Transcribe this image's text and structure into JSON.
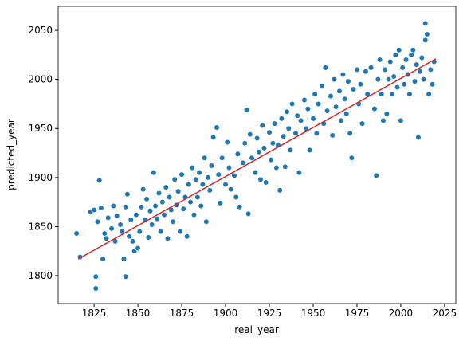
{
  "chart_data": {
    "type": "scatter",
    "xlabel": "real_year",
    "ylabel": "predicted_year",
    "xlim": [
      1804.5,
      2031.4
    ],
    "ylim": [
      1771.6,
      2074.4
    ],
    "xticks": [
      1825,
      1850,
      1875,
      1900,
      1925,
      1950,
      1975,
      2000,
      2025
    ],
    "yticks": [
      1800,
      1850,
      1900,
      1950,
      2000,
      2050
    ],
    "series": [
      {
        "type": "scatter",
        "color": "#1f77b4",
        "x": [
          1815,
          1817,
          1823,
          1825,
          1826,
          1826,
          1827,
          1828,
          1829,
          1830,
          1831,
          1832,
          1833,
          1835,
          1836,
          1837,
          1838,
          1840,
          1841,
          1842,
          1843,
          1843,
          1844,
          1845,
          1846,
          1847,
          1848,
          1849,
          1850,
          1851,
          1852,
          1853,
          1854,
          1855,
          1856,
          1857,
          1858,
          1859,
          1860,
          1861,
          1862,
          1863,
          1864,
          1865,
          1866,
          1867,
          1868,
          1869,
          1870,
          1871,
          1872,
          1873,
          1874,
          1875,
          1876,
          1877,
          1878,
          1879,
          1880,
          1881,
          1882,
          1883,
          1884,
          1885,
          1886,
          1887,
          1888,
          1889,
          1890,
          1891,
          1892,
          1893,
          1895,
          1896,
          1897,
          1898,
          1900,
          1901,
          1902,
          1903,
          1905,
          1906,
          1907,
          1908,
          1910,
          1911,
          1912,
          1913,
          1914,
          1915,
          1917,
          1918,
          1919,
          1920,
          1921,
          1922,
          1923,
          1925,
          1926,
          1927,
          1928,
          1929,
          1930,
          1931,
          1932,
          1933,
          1934,
          1935,
          1936,
          1937,
          1938,
          1940,
          1941,
          1942,
          1943,
          1945,
          1946,
          1947,
          1948,
          1950,
          1951,
          1952,
          1953,
          1955,
          1956,
          1957,
          1958,
          1960,
          1961,
          1962,
          1963,
          1965,
          1966,
          1967,
          1968,
          1969,
          1970,
          1971,
          1972,
          1973,
          1975,
          1976,
          1977,
          1978,
          1980,
          1981,
          1983,
          1985,
          1986,
          1987,
          1988,
          1989,
          1990,
          1991,
          1992,
          1993,
          1994,
          1995,
          1996,
          1997,
          1998,
          1999,
          2000,
          2001,
          2002,
          2003,
          2004,
          2005,
          2006,
          2007,
          2008,
          2009,
          2010,
          2011,
          2012,
          2013,
          2014,
          2014,
          2015,
          2016,
          2017,
          2018,
          2019
        ],
        "y": [
          1843,
          1819,
          1865,
          1867,
          1799,
          1787,
          1855,
          1897,
          1869,
          1817,
          1843,
          1838,
          1859,
          1848,
          1871,
          1835,
          1861,
          1852,
          1845,
          1817,
          1799,
          1870,
          1883,
          1840,
          1857,
          1835,
          1825,
          1862,
          1828,
          1845,
          1870,
          1888,
          1857,
          1878,
          1839,
          1866,
          1852,
          1905,
          1871,
          1858,
          1884,
          1845,
          1875,
          1862,
          1890,
          1838,
          1880,
          1867,
          1855,
          1898,
          1872,
          1886,
          1845,
          1903,
          1868,
          1880,
          1840,
          1893,
          1875,
          1910,
          1862,
          1898,
          1880,
          1905,
          1871,
          1893,
          1920,
          1855,
          1900,
          1887,
          1912,
          1941,
          1951,
          1903,
          1874,
          1920,
          1893,
          1936,
          1910,
          1888,
          1902,
          1880,
          1924,
          1870,
          1915,
          1935,
          1969,
          1863,
          1944,
          1920,
          1905,
          1940,
          1926,
          1898,
          1953,
          1930,
          1895,
          1946,
          1918,
          1935,
          1955,
          1910,
          1933,
          1887,
          1960,
          1942,
          1911,
          1967,
          1950,
          1928,
          1975,
          1945,
          1963,
          1905,
          1958,
          1979,
          1950,
          1970,
          1928,
          1960,
          1985,
          1945,
          1975,
          1993,
          1955,
          2012,
          1968,
          1983,
          1943,
          2000,
          1972,
          1988,
          1958,
          2005,
          1980,
          1965,
          1998,
          1945,
          1920,
          1990,
          2010,
          1975,
          1995,
          1955,
          2008,
          1985,
          2012,
          1970,
          1902,
          2000,
          2020,
          1985,
          1958,
          2010,
          1965,
          2000,
          2018,
          1985,
          2003,
          2025,
          1992,
          2030,
          1958,
          2012,
          1995,
          2020,
          2005,
          1985,
          2025,
          2030,
          1998,
          2015,
          1941,
          2008,
          2022,
          2000,
          2057,
          2040,
          2046,
          1985,
          2010,
          1995,
          2018
        ]
      },
      {
        "type": "line",
        "color": "#d62728",
        "x": [
          1816,
          2020
        ],
        "y": [
          1817,
          2021
        ]
      }
    ]
  }
}
